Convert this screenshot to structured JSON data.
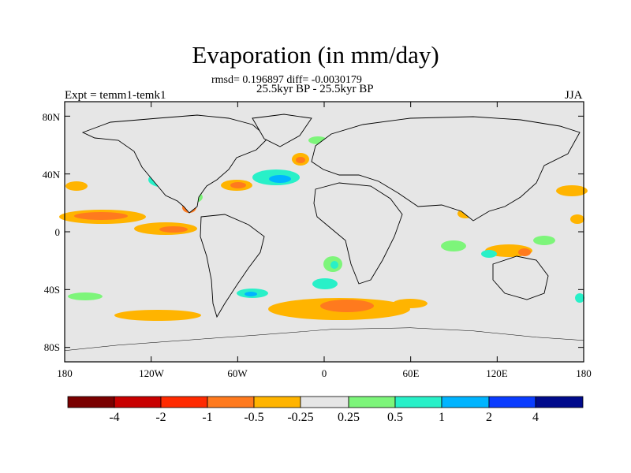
{
  "title": "Evaporation (in mm/day)",
  "stats": "rmsd= 0.196897 diff= -0.0030179",
  "period": "25.5kyr BP - 25.5kyr BP",
  "experiment": "Expt = temm1-temk1",
  "season": "JJA",
  "lat_ticks": [
    "80N",
    "40N",
    "0",
    "40S",
    "80S"
  ],
  "lon_ticks": [
    "180",
    "120W",
    "60W",
    "0",
    "60E",
    "120E",
    "180"
  ],
  "lat_tick_values": [
    80,
    40,
    0,
    -40,
    -80
  ],
  "lon_tick_values": [
    -180,
    -120,
    -60,
    0,
    60,
    120,
    180
  ],
  "colorbar": {
    "labels": [
      "-4",
      "-2",
      "-1",
      "-0.5",
      "-0.25",
      "0.25",
      "0.5",
      "1",
      "2",
      "4"
    ],
    "colors": [
      "#7a0000",
      "#c80000",
      "#ff2a00",
      "#ff7a1e",
      "#ffb400",
      "#e6e6e6",
      "#7df57a",
      "#28f0c8",
      "#00b4ff",
      "#0a3cff",
      "#000a8c"
    ]
  },
  "map_background": "#e6e6e6"
}
